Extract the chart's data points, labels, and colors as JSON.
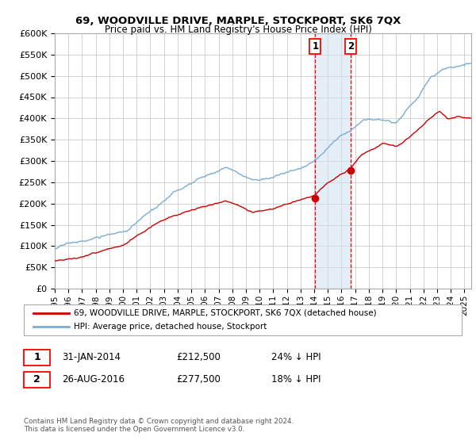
{
  "title": "69, WOODVILLE DRIVE, MARPLE, STOCKPORT, SK6 7QX",
  "subtitle": "Price paid vs. HM Land Registry's House Price Index (HPI)",
  "ylim": [
    0,
    600000
  ],
  "yticks": [
    0,
    50000,
    100000,
    150000,
    200000,
    250000,
    300000,
    350000,
    400000,
    450000,
    500000,
    550000,
    600000
  ],
  "xlim_start": 1995.0,
  "xlim_end": 2025.5,
  "background_color": "#ffffff",
  "grid_color": "#cccccc",
  "hpi_color": "#7aadd4",
  "paid_color": "#cc0000",
  "marker1_date": 2014.083,
  "marker2_date": 2016.667,
  "marker1_price": 212500,
  "marker2_price": 277500,
  "legend_paid": "69, WOODVILLE DRIVE, MARPLE, STOCKPORT, SK6 7QX (detached house)",
  "legend_hpi": "HPI: Average price, detached house, Stockport",
  "note1_date": "31-JAN-2014",
  "note1_price": "£212,500",
  "note1_pct": "24% ↓ HPI",
  "note2_date": "26-AUG-2016",
  "note2_price": "£277,500",
  "note2_pct": "18% ↓ HPI",
  "copyright": "Contains HM Land Registry data © Crown copyright and database right 2024.\nThis data is licensed under the Open Government Licence v3.0."
}
